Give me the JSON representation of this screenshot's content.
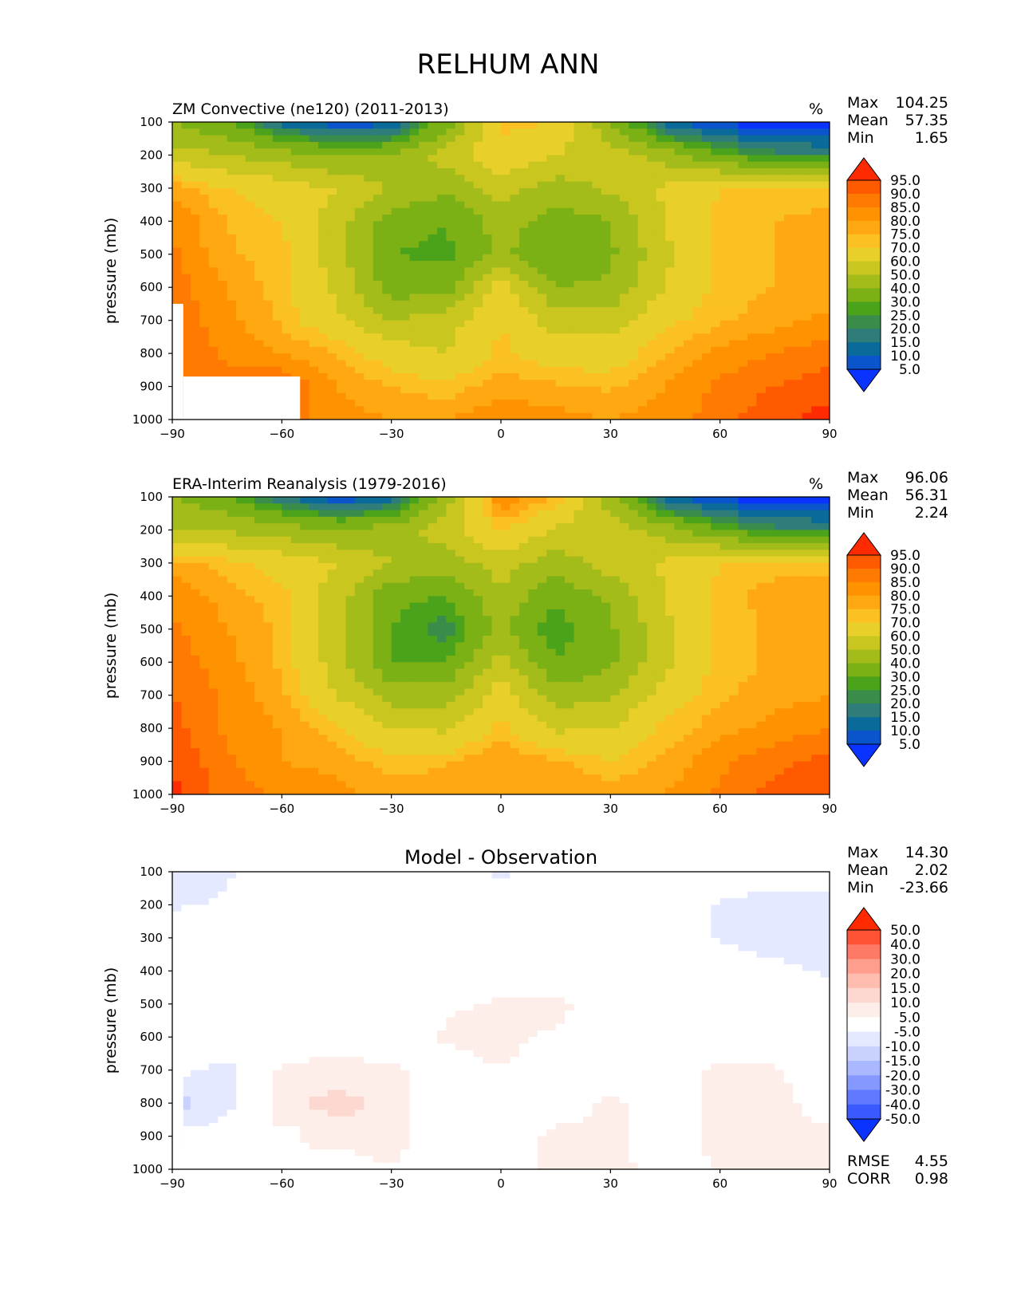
{
  "figure_title": "RELHUM ANN",
  "chart_data": [
    {
      "type": "heatmap",
      "title": "ZM Convective (ne120) (2011-2013)",
      "units": "%",
      "xlabel": "",
      "ylabel": "pressure (mb)",
      "xlim": [
        -90,
        90
      ],
      "ylim": [
        100,
        1000
      ],
      "y_inverted": true,
      "x_ticks": [
        "−90",
        "−60",
        "−30",
        "0",
        "30",
        "60",
        "90"
      ],
      "y_ticks": [
        "100",
        "200",
        "300",
        "400",
        "500",
        "600",
        "700",
        "800",
        "900",
        "1000"
      ],
      "stats": [
        {
          "label": "Max",
          "value": "104.25"
        },
        {
          "label": "Mean",
          "value": "57.35"
        },
        {
          "label": "Min",
          "value": "1.65"
        }
      ],
      "colorbar": {
        "labels": [
          "95.0",
          "90.0",
          "85.0",
          "80.0",
          "75.0",
          "70.0",
          "60.0",
          "50.0",
          "40.0",
          "30.0",
          "25.0",
          "20.0",
          "15.0",
          "10.0",
          "5.0"
        ],
        "colors": [
          "#ff2b00",
          "#ff5a00",
          "#ff7a00",
          "#ff9200",
          "#ffa812",
          "#fbc123",
          "#e9cf2a",
          "#c9c61f",
          "#a4bc1a",
          "#7cb116",
          "#4aa31a",
          "#3a8c4a",
          "#2e7d7a",
          "#0a6a9a",
          "#0a55cc",
          "#0a33ff"
        ],
        "extend": "both"
      },
      "fill": {
        "lats": [
          -90,
          -75,
          -60,
          -45,
          -30,
          -15,
          0,
          15,
          30,
          45,
          60,
          75,
          90
        ],
        "levels": [
          100,
          200,
          300,
          400,
          500,
          600,
          700,
          800,
          900,
          1000
        ],
        "values": [
          [
            40,
            30,
            12,
            5,
            8,
            35,
            72,
            70,
            40,
            10,
            3,
            2,
            2
          ],
          [
            55,
            50,
            45,
            38,
            40,
            55,
            68,
            60,
            55,
            45,
            30,
            22,
            20
          ],
          [
            78,
            70,
            65,
            60,
            50,
            42,
            55,
            45,
            52,
            62,
            70,
            70,
            70
          ],
          [
            85,
            75,
            70,
            55,
            35,
            30,
            45,
            35,
            40,
            60,
            72,
            75,
            78
          ],
          [
            86,
            76,
            72,
            55,
            30,
            28,
            42,
            30,
            38,
            58,
            72,
            75,
            78
          ],
          [
            88,
            80,
            72,
            58,
            35,
            35,
            65,
            40,
            42,
            60,
            72,
            75,
            76
          ],
          [
            88,
            82,
            74,
            62,
            50,
            55,
            70,
            55,
            55,
            68,
            74,
            78,
            82
          ],
          [
            90,
            84,
            80,
            75,
            65,
            60,
            72,
            65,
            65,
            75,
            82,
            85,
            88
          ],
          [
            92,
            86,
            90,
            80,
            75,
            72,
            78,
            76,
            74,
            80,
            86,
            90,
            93
          ],
          [
            92,
            88,
            88,
            82,
            80,
            80,
            84,
            82,
            80,
            82,
            88,
            94,
            97
          ]
        ],
        "missing_regions": [
          {
            "lat_min": -90,
            "lat_max": -87,
            "p_min": 650,
            "p_max": 1000
          },
          {
            "lat_min": -87,
            "lat_max": -55,
            "p_min": 870,
            "p_max": 1000
          }
        ]
      }
    },
    {
      "type": "heatmap",
      "title": "ERA-Interim Reanalysis (1979-2016)",
      "units": "%",
      "xlabel": "",
      "ylabel": "pressure (mb)",
      "xlim": [
        -90,
        90
      ],
      "ylim": [
        100,
        1000
      ],
      "y_inverted": true,
      "x_ticks": [
        "−90",
        "−60",
        "−30",
        "0",
        "30",
        "60",
        "90"
      ],
      "y_ticks": [
        "100",
        "200",
        "300",
        "400",
        "500",
        "600",
        "700",
        "800",
        "900",
        "1000"
      ],
      "stats": [
        {
          "label": "Max",
          "value": "96.06"
        },
        {
          "label": "Mean",
          "value": "56.31"
        },
        {
          "label": "Min",
          "value": "2.24"
        }
      ],
      "colorbar": {
        "labels": [
          "95.0",
          "90.0",
          "85.0",
          "80.0",
          "75.0",
          "70.0",
          "60.0",
          "50.0",
          "40.0",
          "30.0",
          "25.0",
          "20.0",
          "15.0",
          "10.0",
          "5.0"
        ],
        "colors": [
          "#ff2b00",
          "#ff5a00",
          "#ff7a00",
          "#ff9200",
          "#ffa812",
          "#fbc123",
          "#e9cf2a",
          "#c9c61f",
          "#a4bc1a",
          "#7cb116",
          "#4aa31a",
          "#3a8c4a",
          "#2e7d7a",
          "#0a6a9a",
          "#0a55cc",
          "#0a33ff"
        ],
        "extend": "both"
      },
      "fill": {
        "lats": [
          -90,
          -75,
          -60,
          -45,
          -30,
          -15,
          0,
          15,
          30,
          45,
          60,
          75,
          90
        ],
        "levels": [
          100,
          200,
          300,
          400,
          500,
          600,
          700,
          800,
          900,
          1000
        ],
        "values": [
          [
            40,
            32,
            15,
            5,
            10,
            45,
            85,
            75,
            45,
            10,
            3,
            2,
            2
          ],
          [
            50,
            48,
            45,
            40,
            45,
            55,
            72,
            58,
            55,
            45,
            30,
            22,
            20
          ],
          [
            78,
            72,
            66,
            60,
            50,
            45,
            55,
            45,
            55,
            62,
            70,
            72,
            72
          ],
          [
            84,
            78,
            72,
            55,
            32,
            30,
            48,
            32,
            42,
            60,
            72,
            78,
            80
          ],
          [
            86,
            80,
            74,
            55,
            30,
            22,
            42,
            25,
            38,
            58,
            72,
            76,
            78
          ],
          [
            88,
            82,
            74,
            55,
            30,
            30,
            55,
            30,
            38,
            58,
            72,
            76,
            78
          ],
          [
            90,
            84,
            76,
            60,
            45,
            45,
            65,
            45,
            48,
            65,
            74,
            78,
            80
          ],
          [
            92,
            84,
            80,
            72,
            60,
            58,
            72,
            58,
            60,
            72,
            78,
            82,
            85
          ],
          [
            95,
            86,
            80,
            78,
            72,
            74,
            80,
            76,
            70,
            76,
            84,
            88,
            92
          ],
          [
            96,
            88,
            84,
            82,
            78,
            80,
            80,
            80,
            78,
            80,
            86,
            92,
            95
          ]
        ],
        "missing_regions": []
      }
    },
    {
      "type": "heatmap",
      "title": "Model - Observation",
      "units": "",
      "xlabel": "",
      "ylabel": "pressure (mb)",
      "xlim": [
        -90,
        90
      ],
      "ylim": [
        100,
        1000
      ],
      "y_inverted": true,
      "x_ticks": [
        "−90",
        "−60",
        "−30",
        "0",
        "30",
        "60",
        "90"
      ],
      "y_ticks": [
        "100",
        "200",
        "300",
        "400",
        "500",
        "600",
        "700",
        "800",
        "900",
        "1000"
      ],
      "stats": [
        {
          "label": "Max",
          "value": "14.30"
        },
        {
          "label": "Mean",
          "value": "2.02"
        },
        {
          "label": "Min",
          "value": "-23.66"
        }
      ],
      "bottom_stats": [
        {
          "label": "RMSE",
          "value": "4.55"
        },
        {
          "label": "CORR",
          "value": "0.98"
        }
      ],
      "colorbar": {
        "labels": [
          "50.0",
          "40.0",
          "30.0",
          "20.0",
          "15.0",
          "10.0",
          "5.0",
          "-5.0",
          "-10.0",
          "-15.0",
          "-20.0",
          "-30.0",
          "-40.0",
          "-50.0"
        ],
        "colors": [
          "#ff2a00",
          "#ff5133",
          "#ff7a66",
          "#ff9e8c",
          "#ffbdb0",
          "#fdd8d0",
          "#fdeeea",
          "#ffffff",
          "#e4e9ff",
          "#c9d2ff",
          "#aab8ff",
          "#8598ff",
          "#6079ff",
          "#3a5aff",
          "#0a33ff"
        ],
        "extend": "both"
      },
      "fill": {
        "lats": [
          -90,
          -75,
          -60,
          -45,
          -30,
          -15,
          0,
          15,
          30,
          45,
          60,
          75,
          90
        ],
        "levels": [
          100,
          200,
          300,
          400,
          500,
          600,
          700,
          800,
          900,
          1000
        ],
        "values": [
          [
            -8,
            -6,
            0,
            0,
            0,
            -3,
            -6,
            -3,
            0,
            0,
            0,
            0,
            0
          ],
          [
            -6,
            -4,
            0,
            0,
            0,
            0,
            0,
            0,
            0,
            0,
            -6,
            -8,
            -10
          ],
          [
            0,
            0,
            0,
            0,
            0,
            0,
            0,
            0,
            0,
            0,
            -6,
            -9,
            -7
          ],
          [
            0,
            0,
            0,
            0,
            0,
            0,
            0,
            0,
            3,
            0,
            0,
            -3,
            -6
          ],
          [
            0,
            0,
            0,
            0,
            0,
            4,
            6,
            7,
            0,
            0,
            0,
            0,
            0
          ],
          [
            2,
            0,
            0,
            0,
            0,
            6,
            7,
            4,
            0,
            0,
            0,
            0,
            0
          ],
          [
            -3,
            -7,
            6,
            8,
            6,
            2,
            5,
            0,
            0,
            0,
            7,
            6,
            0
          ],
          [
            -12,
            -7,
            8,
            12,
            8,
            0,
            0,
            0,
            7,
            0,
            8,
            7,
            2
          ],
          [
            -10,
            0,
            6,
            8,
            8,
            0,
            0,
            7,
            7,
            0,
            8,
            8,
            6
          ],
          [
            0,
            0,
            0,
            0,
            5,
            0,
            0,
            8,
            9,
            0,
            6,
            6,
            10
          ]
        ],
        "missing_regions": [
          {
            "lat_min": -90,
            "lat_max": -87,
            "p_min": 650,
            "p_max": 1000
          },
          {
            "lat_min": -87,
            "lat_max": -55,
            "p_min": 870,
            "p_max": 1000
          }
        ]
      }
    }
  ]
}
